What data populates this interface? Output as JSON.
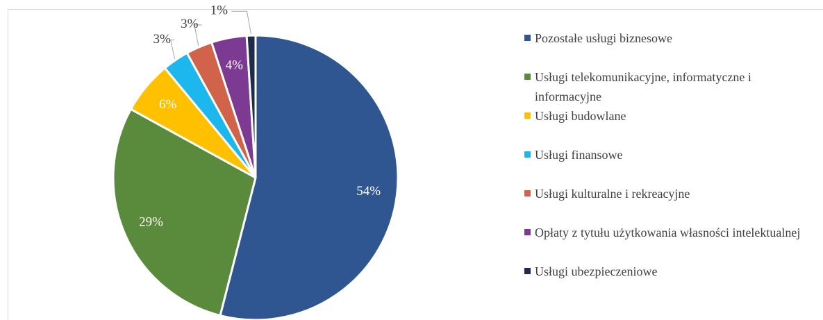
{
  "chart_data": {
    "type": "pie",
    "categories": [
      "Pozostałe usługi biznesowe",
      "Usługi telekomunikacyjne, informatyczne i informacyjne",
      "Usługi budowlane",
      "Usługi finansowe",
      "Usługi kulturalne i rekreacyjne",
      "Opłaty z tytułu użytkowania własności intelektualnej",
      "Usługi ubezpieczeniowe"
    ],
    "values": [
      54,
      29,
      6,
      3,
      3,
      4,
      1
    ],
    "value_labels": [
      "54%",
      "29%",
      "6%",
      "3%",
      "3%",
      "4%",
      "1%"
    ],
    "colors": [
      "#2f5690",
      "#5a8a3c",
      "#ffc000",
      "#1cb7ec",
      "#d1634b",
      "#7c3a92",
      "#1d2c4b"
    ]
  }
}
